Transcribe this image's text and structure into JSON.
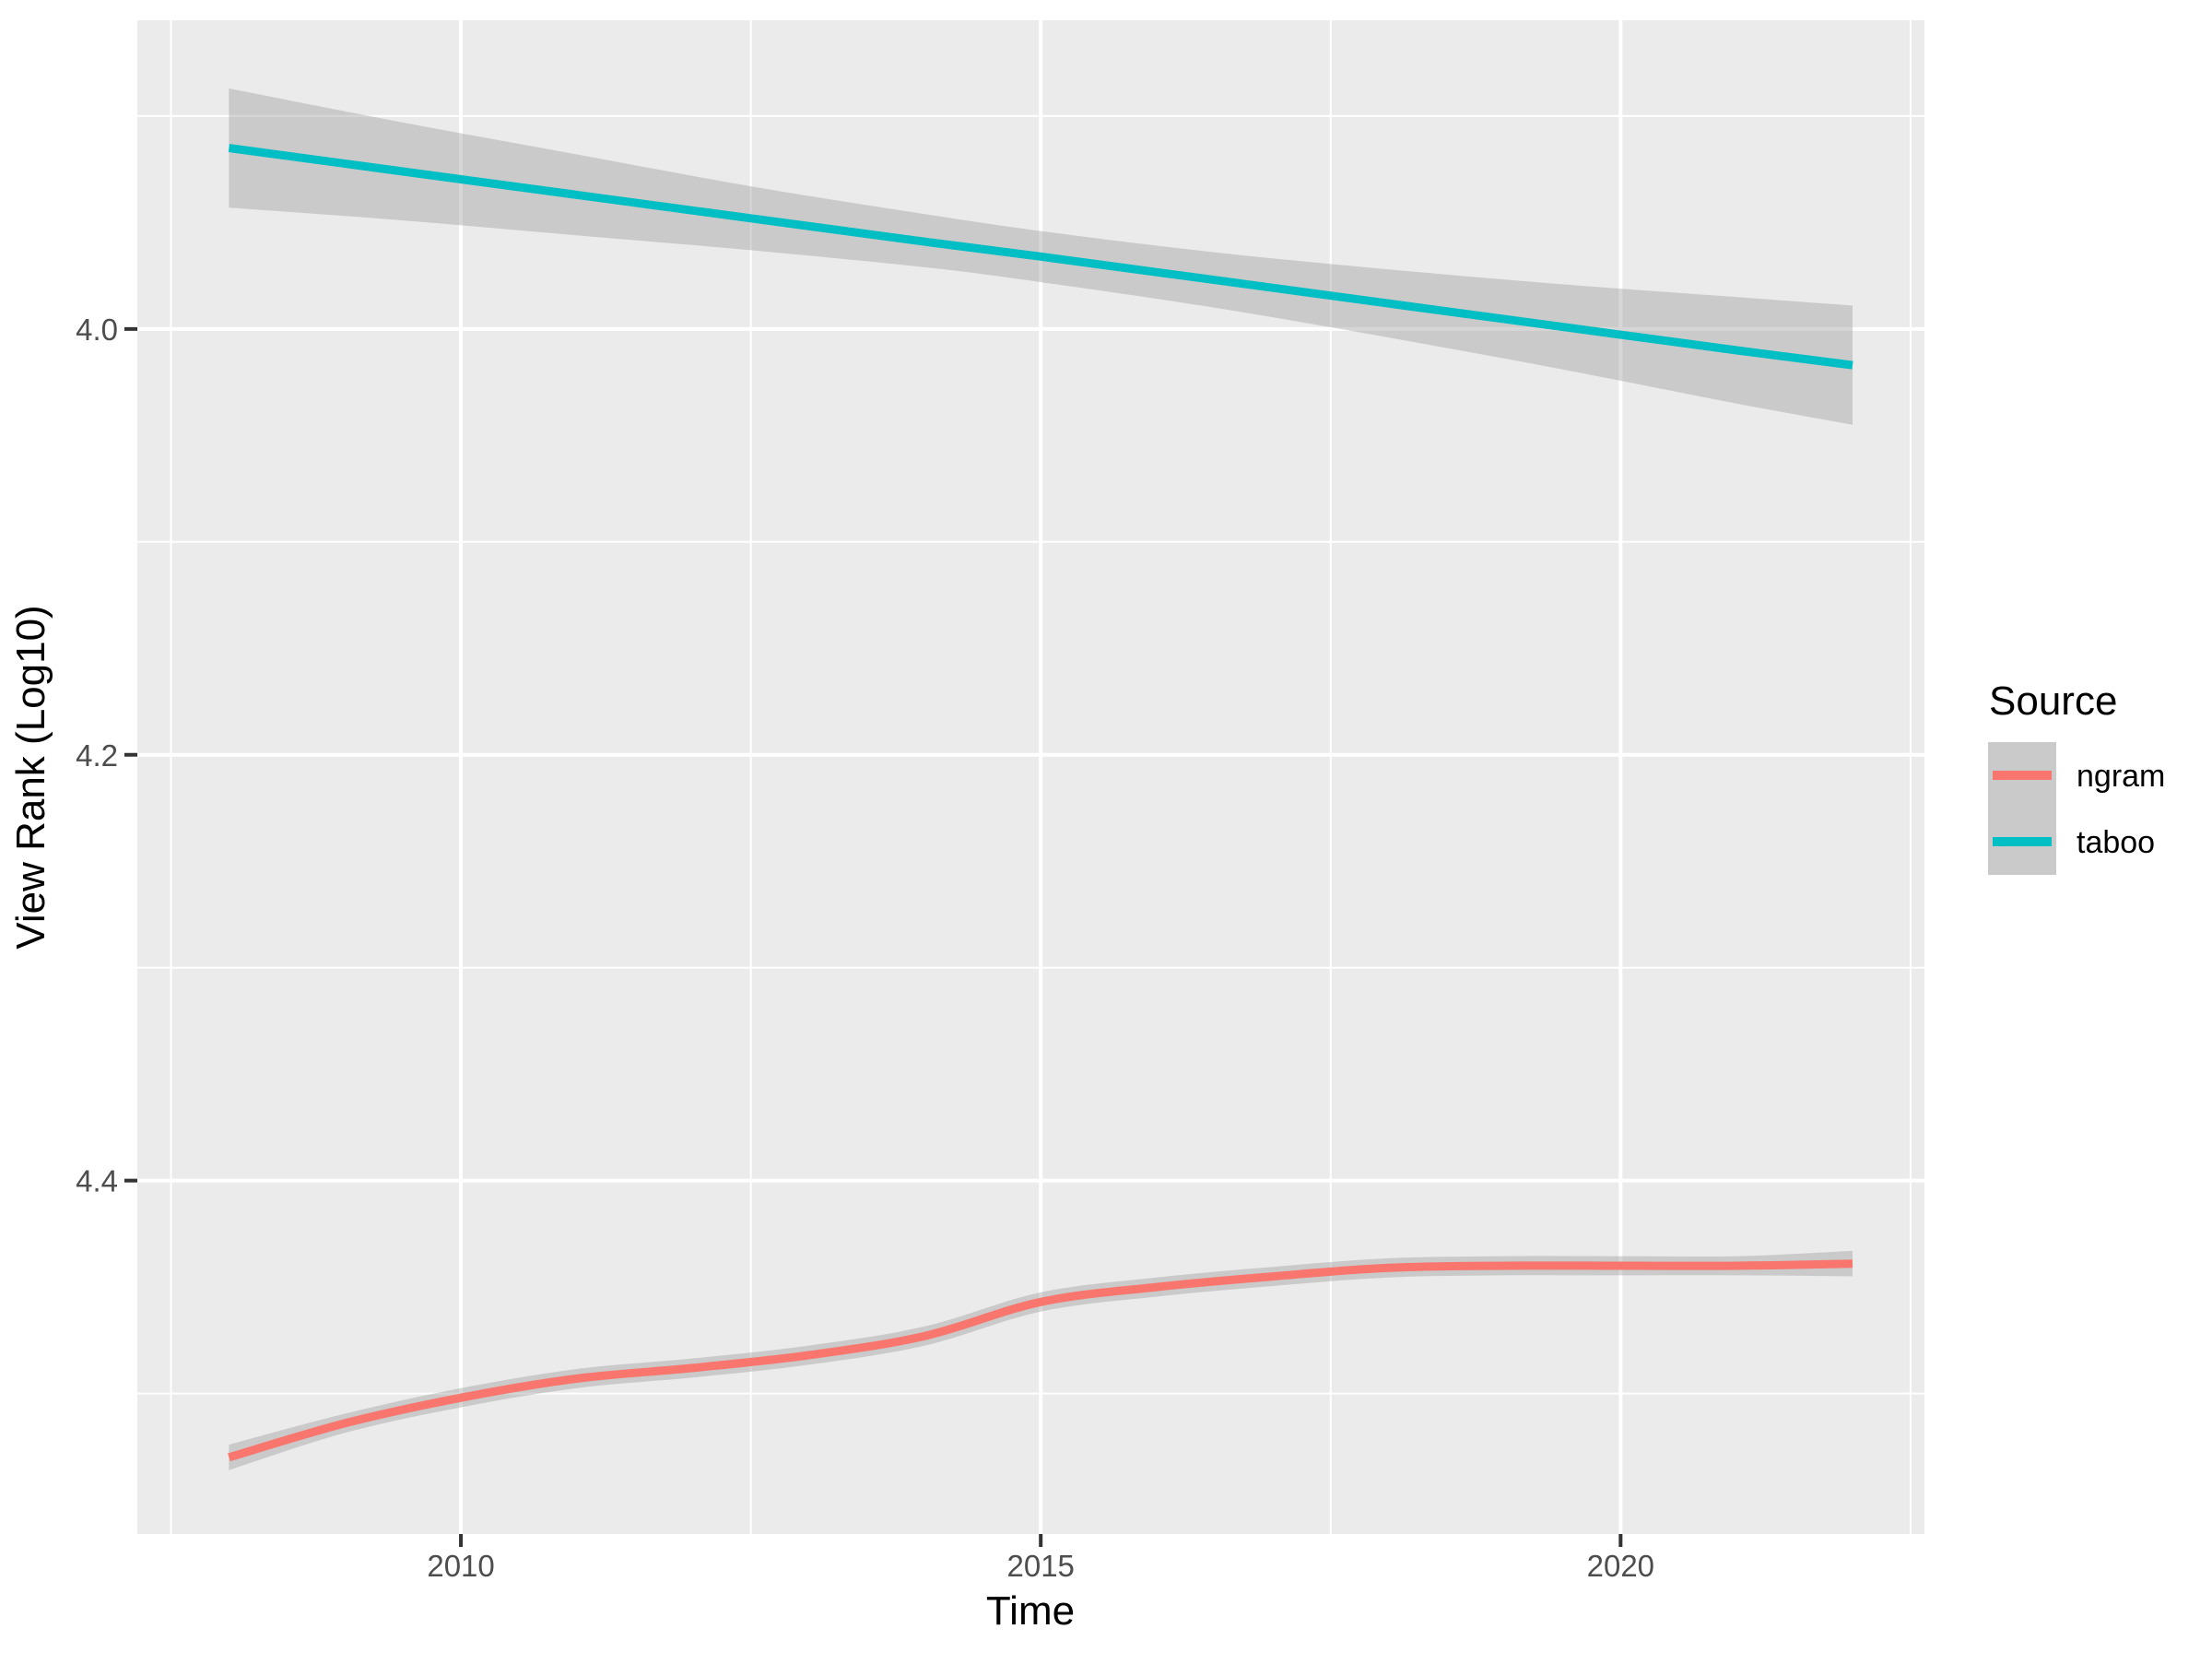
{
  "figure": {
    "background": "#FFFFFF",
    "panel_background": "#EBEBEB",
    "grid_color": "#FFFFFF",
    "tick_color": "#333333",
    "tick_label_color": "#4D4D4D",
    "band_color_rgba": "rgba(153,153,153,0.4)"
  },
  "chart_data": {
    "type": "line",
    "title": "",
    "xlabel": "Time",
    "ylabel": "View Rank (Log10)",
    "grid": "on",
    "legend_position": "right",
    "legend": {
      "title": "Source"
    },
    "x_axis": {
      "ticks": [
        2010,
        2015,
        2020
      ],
      "tick_labels": [
        "2010",
        "2015",
        "2020"
      ],
      "minor_ticks": [
        2007.5,
        2012.5,
        2017.5,
        2022.5
      ],
      "range": [
        2007.21,
        2022.62
      ]
    },
    "y_axis": {
      "ticks": [
        4.0,
        4.2,
        4.4
      ],
      "tick_labels": [
        "4.0",
        "4.2",
        "4.4"
      ],
      "minor_ticks": [
        3.9,
        4.1,
        4.3,
        4.5
      ],
      "range": [
        3.855,
        4.566
      ],
      "reversed": true,
      "note": "axis values increase downward (rank scale reversed)"
    },
    "smoothing": "smoothed trend lines with 95% confidence bands",
    "series": [
      {
        "name": "ngram",
        "color": "#F8766D",
        "x": [
          2008,
          2009,
          2010,
          2011,
          2012,
          2013,
          2014,
          2015,
          2016,
          2017,
          2018,
          2019,
          2020,
          2021,
          2022
        ],
        "y": [
          4.53,
          4.514,
          4.502,
          4.493,
          4.488,
          4.482,
          4.473,
          4.457,
          4.45,
          4.445,
          4.441,
          4.44,
          4.44,
          4.44,
          4.439
        ],
        "band_lo": [
          4.524,
          4.5095,
          4.4975,
          4.4885,
          4.4835,
          4.4775,
          4.4685,
          4.4525,
          4.4455,
          4.4405,
          4.4365,
          4.4355,
          4.4355,
          4.4355,
          4.433
        ],
        "band_hi": [
          4.536,
          4.5185,
          4.5065,
          4.4975,
          4.4925,
          4.4865,
          4.4775,
          4.4615,
          4.4545,
          4.4495,
          4.4455,
          4.4445,
          4.4445,
          4.4445,
          4.445
        ]
      },
      {
        "name": "taboo",
        "color": "#00BFC4",
        "x": [
          2008,
          2009.5,
          2011,
          2012.5,
          2014,
          2015,
          2016.5,
          2018,
          2019.5,
          2021,
          2022
        ],
        "y": [
          3.915,
          3.926,
          3.937,
          3.948,
          3.959,
          3.966,
          3.977,
          3.988,
          3.999,
          4.01,
          4.017
        ],
        "band_lo": [
          3.887,
          3.903,
          3.918,
          3.933,
          3.946,
          3.954,
          3.964,
          3.972,
          3.979,
          3.985,
          3.989
        ],
        "band_hi": [
          3.943,
          3.949,
          3.956,
          3.963,
          3.971,
          3.978,
          3.99,
          4.004,
          4.019,
          4.035,
          4.045
        ]
      }
    ]
  }
}
